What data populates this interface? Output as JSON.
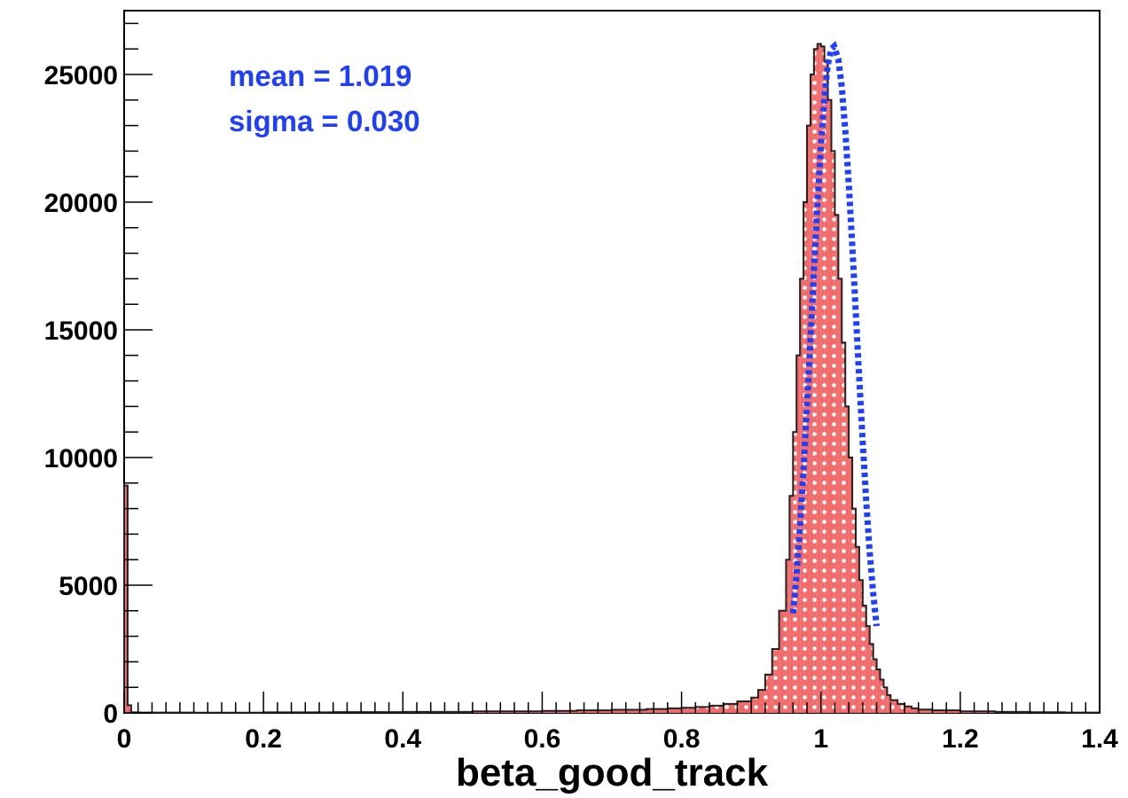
{
  "chart_data": {
    "type": "bar",
    "xlabel": "beta_good_track",
    "ylabel": "",
    "xlim": [
      0,
      1.4
    ],
    "ylim": [
      0,
      27500
    ],
    "x_ticks": [
      "0",
      "0.2",
      "0.4",
      "0.6",
      "0.8",
      "1",
      "1.2",
      "1.4"
    ],
    "y_ticks": [
      "0",
      "5000",
      "10000",
      "15000",
      "20000",
      "25000"
    ],
    "grid": false,
    "legend": "none",
    "colors": {
      "histogram_fill": "#f26b6b",
      "histogram_pattern": "#ffffff",
      "histogram_outline": "#222222",
      "fit_line": "#1f3fff",
      "annotation": "#1f3fff"
    },
    "annotations": [
      {
        "text": "mean = 1.019",
        "color": "#1f3fff"
      },
      {
        "text": "sigma = 0.030",
        "color": "#1f3fff"
      }
    ],
    "histogram": {
      "bin_edges": [
        0,
        0.005,
        0.01,
        0.02,
        0.1,
        0.2,
        0.3,
        0.4,
        0.5,
        0.6,
        0.65,
        0.7,
        0.75,
        0.78,
        0.8,
        0.82,
        0.84,
        0.86,
        0.88,
        0.9,
        0.91,
        0.92,
        0.93,
        0.94,
        0.95,
        0.955,
        0.96,
        0.965,
        0.97,
        0.975,
        0.98,
        0.985,
        0.99,
        0.995,
        1.0,
        1.005,
        1.01,
        1.015,
        1.02,
        1.025,
        1.03,
        1.035,
        1.04,
        1.045,
        1.05,
        1.055,
        1.06,
        1.065,
        1.07,
        1.075,
        1.08,
        1.085,
        1.09,
        1.095,
        1.1,
        1.11,
        1.12,
        1.13,
        1.14,
        1.16,
        1.2,
        1.25,
        1.3,
        1.35,
        1.4
      ],
      "counts": [
        8900,
        300,
        20,
        15,
        10,
        20,
        30,
        40,
        60,
        80,
        100,
        120,
        150,
        180,
        200,
        230,
        280,
        350,
        450,
        600,
        900,
        1500,
        2500,
        4000,
        6000,
        8500,
        11000,
        14000,
        17000,
        20000,
        23000,
        25000,
        26000,
        26200,
        26100,
        25500,
        24000,
        22000,
        19500,
        17000,
        14500,
        12000,
        10000,
        8000,
        6500,
        5200,
        4200,
        3400,
        2700,
        2100,
        1700,
        1300,
        1000,
        700,
        500,
        350,
        250,
        180,
        130,
        100,
        60,
        40,
        25,
        15
      ]
    },
    "series": [
      {
        "type": "line",
        "style": "dotted",
        "x": [
          0.96,
          0.965,
          0.97,
          0.975,
          0.98,
          0.985,
          0.99,
          0.995,
          1.0,
          1.005,
          1.01,
          1.015,
          1.019,
          1.025,
          1.03,
          1.035,
          1.04,
          1.045,
          1.05,
          1.055,
          1.06,
          1.065,
          1.07,
          1.075,
          1.08
        ],
        "y": [
          3900,
          5400,
          7300,
          9500,
          12000,
          14600,
          17300,
          19900,
          22200,
          24100,
          25400,
          26000,
          26100,
          25600,
          24500,
          22800,
          20700,
          18300,
          15700,
          13100,
          10600,
          8300,
          6300,
          4700,
          3400
        ]
      }
    ]
  }
}
